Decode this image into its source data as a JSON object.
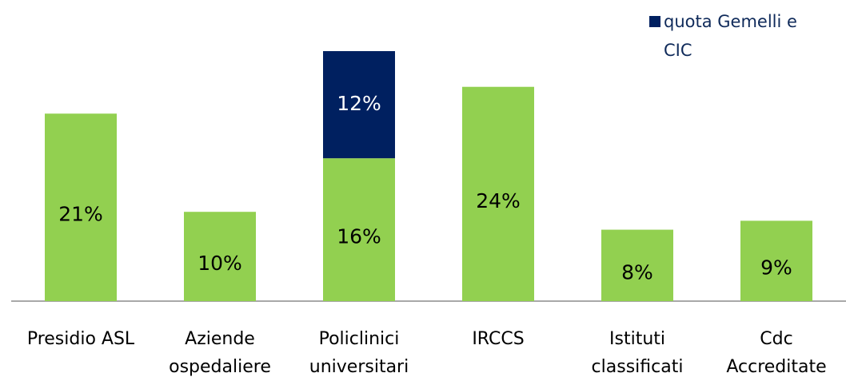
{
  "chart_data": {
    "type": "bar",
    "stacked": true,
    "categories": [
      "Presidio ASL",
      "Aziende\nospedaliere",
      "Policlinici\nuniversitari",
      "IRCCS",
      "Istituti\nclassificati",
      "Cdc\nAccreditate"
    ],
    "series": [
      {
        "color": "#92d050",
        "values": [
          21,
          10,
          16,
          24,
          8,
          9
        ],
        "value_labels": [
          "21%",
          "10%",
          "16%",
          "24%",
          "8%",
          "9%"
        ]
      },
      {
        "name": "quota Gemelli e\nCIC",
        "color": "#002060",
        "values": [
          null,
          null,
          12,
          null,
          null,
          null
        ],
        "value_labels": [
          null,
          null,
          "12%",
          null,
          null,
          null
        ]
      }
    ],
    "legend": "top-right"
  }
}
